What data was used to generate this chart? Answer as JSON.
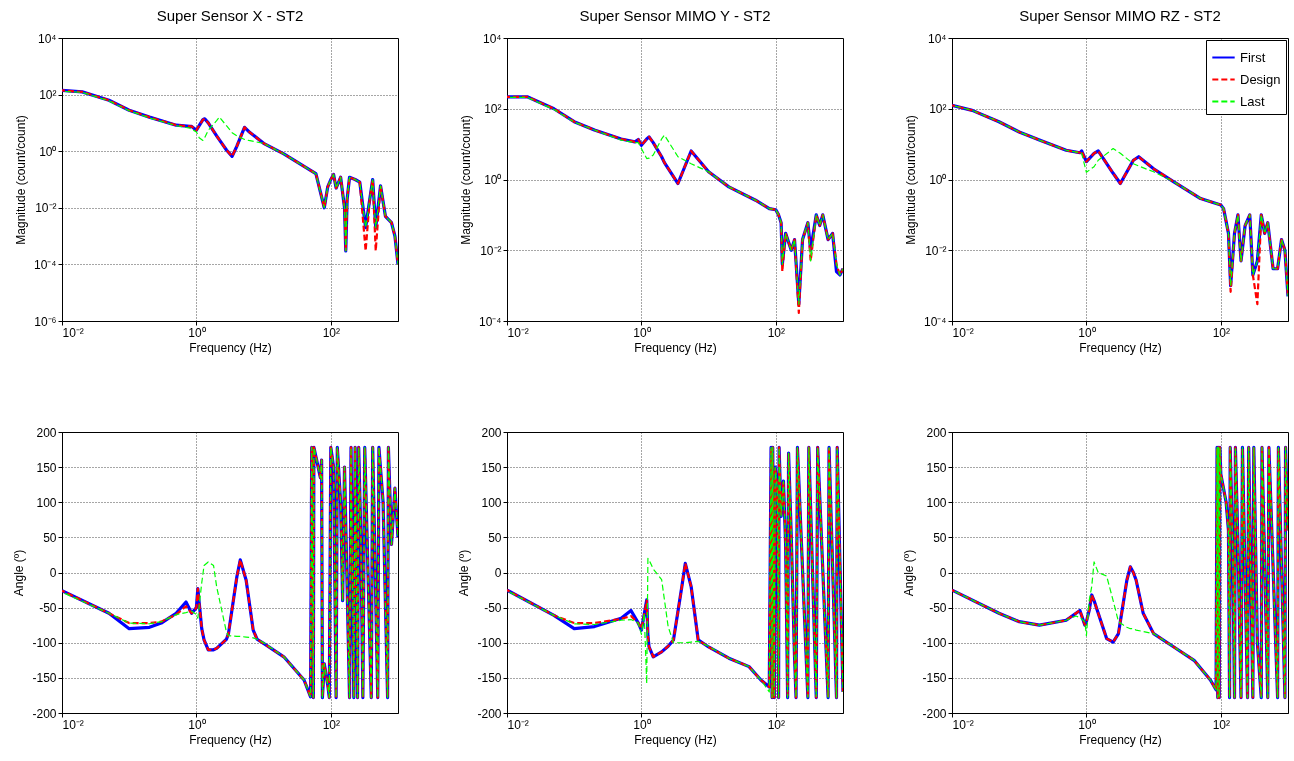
{
  "chart_data": [
    {
      "type": "line",
      "title": "Super Sensor X - ST2",
      "xlabel": "Frequency (Hz)",
      "ylabel": "Magnitude (count/count)",
      "log": "xy",
      "grid": true,
      "xlim": [
        0.01,
        1000
      ],
      "ylim": [
        1e-06,
        10000
      ],
      "xticks": [
        {
          "value": 0.01,
          "label": "10⁻²"
        },
        {
          "value": 1,
          "label": "10⁰"
        },
        {
          "value": 100,
          "label": "10²"
        }
      ],
      "yticks": [
        {
          "value": 1e-06,
          "label": "10⁻⁶"
        },
        {
          "value": 0.0001,
          "label": "10⁻⁴"
        },
        {
          "value": 0.01,
          "label": "10⁻²"
        },
        {
          "value": 1,
          "label": "10⁰"
        },
        {
          "value": 100,
          "label": "10²"
        },
        {
          "value": 10000,
          "label": "10⁴"
        }
      ],
      "x": [
        0.01,
        0.02,
        0.05,
        0.1,
        0.2,
        0.5,
        0.8,
        0.85,
        1,
        1.1,
        1.25,
        1.33,
        1.5,
        2,
        2.2,
        2.8,
        3.4,
        4,
        5.2,
        6,
        10,
        20,
        50,
        60,
        80,
        90,
        100,
        110,
        120,
        140,
        160,
        167,
        175,
        190,
        230,
        270,
        330,
        380,
        420,
        466,
        550,
        650,
        800,
        900,
        1000
      ],
      "series": [
        {
          "color": "#0000ff",
          "line_style": "solid",
          "values": [
            140,
            125,
            63,
            28,
            16,
            8.3,
            7.5,
            7.5,
            5.5,
            8,
            13,
            14,
            10,
            3.5,
            2.5,
            1.1,
            0.66,
            1.5,
            7,
            5,
            1.9,
            0.8,
            0.21,
            0.16,
            0.01,
            0.055,
            0.1,
            0.15,
            0.05,
            0.12,
            0.01,
            0.0003,
            0.02,
            0.12,
            0.1,
            0.08,
            0.002,
            0.02,
            0.1,
            0.002,
            0.06,
            0.005,
            0.003,
            0.001,
            0.0001
          ]
        },
        {
          "color": "#ff0000",
          "line_style": "dashed",
          "values": [
            140,
            125,
            63,
            28,
            16,
            8.3,
            7.5,
            7.5,
            5.5,
            8,
            13,
            14,
            10,
            3.5,
            2.5,
            1.1,
            0.66,
            1.5,
            7,
            5,
            1.9,
            0.8,
            0.21,
            0.16,
            0.01,
            0.055,
            0.1,
            0.15,
            0.05,
            0.12,
            0.01,
            0.0003,
            0.02,
            0.12,
            0.1,
            0.08,
            0.0003,
            0.02,
            0.1,
            0.0003,
            0.06,
            0.005,
            0.003,
            0.001,
            0.0001
          ]
        },
        {
          "color": "#00ff00",
          "line_style": "dashed",
          "values": [
            130,
            120,
            60,
            27,
            15,
            8,
            6.5,
            6,
            4.8,
            3,
            2.4,
            3,
            5.5,
            12,
            16,
            8,
            4.5,
            3.5,
            2.6,
            2.4,
            1.9,
            0.8,
            0.21,
            0.16,
            0.01,
            0.055,
            0.1,
            0.15,
            0.05,
            0.12,
            0.01,
            0.0003,
            0.02,
            0.12,
            0.1,
            0.08,
            0.002,
            0.02,
            0.1,
            0.002,
            0.06,
            0.005,
            0.003,
            0.001,
            0.0001
          ]
        }
      ]
    },
    {
      "type": "line",
      "title": "Super Sensor MIMO Y - ST2",
      "xlabel": "Frequency (Hz)",
      "ylabel": "Magnitude (count/count)",
      "log": "xy",
      "grid": true,
      "xlim": [
        0.01,
        1000
      ],
      "ylim": [
        0.0001,
        10000
      ],
      "xticks": [
        {
          "value": 0.01,
          "label": "10⁻²"
        },
        {
          "value": 1,
          "label": "10⁰"
        },
        {
          "value": 100,
          "label": "10²"
        }
      ],
      "yticks": [
        {
          "value": 0.0001,
          "label": "10⁻⁴"
        },
        {
          "value": 0.01,
          "label": "10⁻²"
        },
        {
          "value": 1,
          "label": "10⁰"
        },
        {
          "value": 100,
          "label": "10²"
        },
        {
          "value": 10000,
          "label": "10⁴"
        }
      ],
      "x": [
        0.01,
        0.02,
        0.05,
        0.1,
        0.2,
        0.5,
        0.8,
        0.9,
        1,
        1.2,
        1.3,
        1.5,
        2,
        2.2,
        3.5,
        5.5,
        10,
        20,
        50,
        80,
        100,
        110,
        120,
        125,
        140,
        170,
        190,
        220,
        250,
        300,
        330,
        400,
        450,
        500,
        600,
        700,
        800,
        900,
        1000
      ],
      "series": [
        {
          "color": "#0000ff",
          "line_style": "solid",
          "values": [
            218,
            218,
            100,
            43,
            25,
            14,
            11.6,
            13.5,
            9.3,
            14,
            16,
            11,
            4.4,
            3,
            0.77,
            6.4,
            1.65,
            0.62,
            0.26,
            0.15,
            0.14,
            0.1,
            0.06,
            0.004,
            0.03,
            0.01,
            0.02,
            0.0003,
            0.02,
            0.06,
            0.01,
            0.1,
            0.05,
            0.1,
            0.02,
            0.03,
            0.0025,
            0.002,
            0.003
          ]
        },
        {
          "color": "#ff0000",
          "line_style": "dashed",
          "values": [
            218,
            218,
            100,
            43,
            25,
            14,
            11.6,
            13.5,
            9.3,
            14,
            16,
            11,
            4.4,
            3,
            0.77,
            6.4,
            1.65,
            0.62,
            0.26,
            0.15,
            0.14,
            0.1,
            0.06,
            0.0025,
            0.03,
            0.01,
            0.02,
            0.00017,
            0.02,
            0.06,
            0.005,
            0.1,
            0.05,
            0.1,
            0.02,
            0.03,
            0.004,
            0.002,
            0.003
          ]
        },
        {
          "color": "#00ff00",
          "line_style": "dashed",
          "values": [
            210,
            210,
            95,
            42,
            25,
            13,
            11,
            11,
            7.5,
            3.9,
            4,
            4.9,
            14,
            18,
            4.4,
            2.8,
            1.65,
            0.62,
            0.26,
            0.15,
            0.14,
            0.1,
            0.06,
            0.004,
            0.03,
            0.01,
            0.02,
            0.0003,
            0.02,
            0.06,
            0.005,
            0.1,
            0.05,
            0.1,
            0.02,
            0.03,
            0.004,
            0.002,
            0.003
          ]
        }
      ]
    },
    {
      "type": "line",
      "title": "Super Sensor MIMO RZ - ST2",
      "xlabel": "Frequency (Hz)",
      "ylabel": "Magnitude (count/count)",
      "log": "xy",
      "grid": true,
      "legend": "top right",
      "xlim": [
        0.01,
        1000
      ],
      "ylim": [
        0.0001,
        10000
      ],
      "xticks": [
        {
          "value": 0.01,
          "label": "10⁻²"
        },
        {
          "value": 1,
          "label": "10⁰"
        },
        {
          "value": 100,
          "label": "10²"
        }
      ],
      "yticks": [
        {
          "value": 0.0001,
          "label": "10⁻⁴"
        },
        {
          "value": 0.01,
          "label": "10⁻²"
        },
        {
          "value": 1,
          "label": "10⁰"
        },
        {
          "value": 100,
          "label": "10²"
        },
        {
          "value": 10000,
          "label": "10⁴"
        }
      ],
      "x": [
        0.01,
        0.02,
        0.05,
        0.1,
        0.2,
        0.5,
        0.8,
        0.85,
        1,
        1.3,
        1.5,
        2.5,
        3.2,
        5,
        6,
        10,
        20,
        50,
        100,
        110,
        130,
        140,
        160,
        180,
        200,
        230,
        270,
        300,
        350,
        400,
        450,
        500,
        600,
        700,
        800,
        900,
        1000
      ],
      "series": [
        {
          "name": "First",
          "color": "#0000ff",
          "line_style": "solid",
          "values": [
            125,
            90,
            43,
            22,
            13,
            6.7,
            5.7,
            6.4,
            3.2,
            5.5,
            6.4,
            1.5,
            0.77,
            3.5,
            4.4,
            2,
            0.86,
            0.29,
            0.19,
            0.15,
            0.03,
            0.001,
            0.03,
            0.1,
            0.005,
            0.05,
            0.1,
            0.002,
            0.005,
            0.1,
            0.03,
            0.06,
            0.003,
            0.003,
            0.02,
            0.01,
            0.0005
          ]
        },
        {
          "name": "Design",
          "color": "#ff0000",
          "line_style": "dashed",
          "values": [
            125,
            90,
            43,
            22,
            13,
            6.7,
            5.7,
            6.4,
            3.2,
            5.5,
            6.4,
            1.5,
            0.77,
            3.5,
            4.4,
            2,
            0.86,
            0.29,
            0.19,
            0.15,
            0.03,
            0.00067,
            0.03,
            0.1,
            0.005,
            0.05,
            0.1,
            0.002,
            0.0003,
            0.1,
            0.03,
            0.06,
            0.003,
            0.003,
            0.02,
            0.01,
            0.0005
          ]
        },
        {
          "name": "Last",
          "color": "#00ff00",
          "line_style": "dashed",
          "values": [
            125,
            90,
            43,
            22,
            13,
            6.7,
            5.7,
            5.5,
            1.6,
            2.3,
            3.5,
            7.5,
            5.5,
            2.8,
            2.4,
            1.65,
            0.86,
            0.29,
            0.19,
            0.15,
            0.03,
            0.001,
            0.03,
            0.1,
            0.005,
            0.05,
            0.1,
            0.002,
            0.005,
            0.1,
            0.03,
            0.06,
            0.003,
            0.003,
            0.02,
            0.01,
            0.0005
          ]
        }
      ]
    },
    {
      "type": "line",
      "xlabel": "Frequency (Hz)",
      "ylabel": "Angle (º)",
      "log": "x",
      "grid": true,
      "xlim": [
        0.01,
        1000
      ],
      "ylim": [
        -200,
        200
      ],
      "xticks": [
        {
          "value": 0.01,
          "label": "10⁻²"
        },
        {
          "value": 1,
          "label": "10⁰"
        },
        {
          "value": 100,
          "label": "10²"
        }
      ],
      "yticks": [
        -200,
        -150,
        -100,
        -50,
        0,
        50,
        100,
        150,
        200
      ],
      "x": [
        0.01,
        0.05,
        0.1,
        0.2,
        0.3,
        0.5,
        0.7,
        0.85,
        1,
        1.05,
        1.2,
        1.3,
        1.5,
        1.8,
        2,
        2.8,
        3,
        4,
        4.5,
        5.5,
        7,
        8,
        10,
        20,
        40,
        50,
        52,
        55,
        56,
        60,
        70,
        73,
        75,
        80,
        90,
        95,
        100,
        110,
        120,
        125,
        140,
        150,
        160,
        190,
        200,
        220,
        230,
        250,
        260,
        280,
        300,
        320,
        400,
        420,
        500,
        520,
        600,
        700,
        720,
        800,
        900,
        1000
      ],
      "series": [
        {
          "color": "#0000ff",
          "line_style": "solid",
          "values": [
            -26,
            -58,
            -80,
            -78,
            -72,
            -58,
            -42,
            -58,
            -50,
            -23,
            -80,
            -96,
            -110,
            -110,
            -108,
            -95,
            -87,
            -6,
            18,
            -11,
            -82,
            -95,
            -101,
            -120,
            -153,
            -177,
            178,
            -178,
            178,
            165,
            135,
            160,
            -178,
            -130,
            -160,
            -178,
            178,
            150,
            -178,
            178,
            100,
            -40,
            150,
            -178,
            178,
            -178,
            178,
            -178,
            178,
            50,
            -178,
            178,
            -178,
            178,
            -178,
            178,
            100,
            -178,
            178,
            40,
            120,
            50
          ]
        },
        {
          "color": "#ff0000",
          "line_style": "dashed",
          "values": [
            -26,
            -58,
            -72,
            -72,
            -70,
            -60,
            -48,
            -58,
            -50,
            -23,
            -80,
            -96,
            -110,
            -110,
            -108,
            -95,
            -87,
            -6,
            18,
            -11,
            -82,
            -95,
            -101,
            -120,
            -153,
            -177,
            178,
            -178,
            178,
            165,
            135,
            160,
            -178,
            -130,
            -160,
            -178,
            178,
            150,
            -178,
            178,
            100,
            -40,
            150,
            -178,
            178,
            -178,
            178,
            -178,
            178,
            50,
            -178,
            178,
            -178,
            178,
            -178,
            178,
            100,
            -178,
            178,
            40,
            120,
            50
          ]
        },
        {
          "color": "#00ff00",
          "line_style": "dashed",
          "values": [
            -28,
            -58,
            -72,
            -73,
            -70,
            -60,
            -57,
            -55,
            -60,
            -65,
            -15,
            10,
            15,
            10,
            -20,
            -85,
            -90,
            -91,
            -91,
            -92,
            -93,
            -95,
            -100,
            -120,
            -153,
            -177,
            178,
            -178,
            178,
            165,
            135,
            160,
            -178,
            -130,
            -160,
            -178,
            178,
            150,
            -178,
            178,
            100,
            -40,
            150,
            -178,
            178,
            -178,
            178,
            -178,
            178,
            50,
            -178,
            178,
            -178,
            178,
            -178,
            178,
            100,
            -178,
            178,
            40,
            120,
            50
          ]
        }
      ]
    },
    {
      "type": "line",
      "xlabel": "Frequency (Hz)",
      "ylabel": "Angle (º)",
      "log": "x",
      "grid": true,
      "xlim": [
        0.01,
        1000
      ],
      "ylim": [
        -200,
        200
      ],
      "xticks": [
        {
          "value": 0.01,
          "label": "10⁻²"
        },
        {
          "value": 1,
          "label": "10⁰"
        },
        {
          "value": 100,
          "label": "10²"
        }
      ],
      "yticks": [
        -200,
        -150,
        -100,
        -50,
        0,
        50,
        100,
        150,
        200
      ],
      "x": [
        0.01,
        0.05,
        0.1,
        0.2,
        0.5,
        0.7,
        0.9,
        1,
        1.1,
        1.2,
        1.25,
        1.3,
        1.5,
        2,
        2.5,
        3,
        4,
        4.5,
        5.5,
        7,
        10,
        20,
        40,
        60,
        80,
        85,
        88,
        90,
        95,
        98,
        105,
        110,
        112,
        120,
        130,
        140,
        150,
        155,
        170,
        190,
        200,
        210,
        300,
        310,
        400,
        420,
        600,
        620,
        800,
        820,
        1000
      ],
      "series": [
        {
          "color": "#0000ff",
          "line_style": "solid",
          "values": [
            -25,
            -61,
            -80,
            -77,
            -65,
            -54,
            -72,
            -82,
            -60,
            -39,
            -90,
            -106,
            -120,
            -113,
            -105,
            -96,
            -20,
            13,
            -20,
            -96,
            -106,
            -122,
            -134,
            -153,
            -163,
            178,
            -178,
            178,
            -178,
            150,
            120,
            -178,
            178,
            80,
            130,
            40,
            -178,
            170,
            50,
            -120,
            -178,
            178,
            -178,
            178,
            -178,
            178,
            -178,
            178,
            -178,
            178,
            -170
          ]
        },
        {
          "color": "#ff0000",
          "line_style": "dashed",
          "values": [
            -25,
            -61,
            -72,
            -72,
            -66,
            -62,
            -72,
            -80,
            -60,
            -40,
            -90,
            -106,
            -120,
            -113,
            -105,
            -96,
            -20,
            13,
            -20,
            -96,
            -106,
            -122,
            -134,
            -153,
            -163,
            178,
            -178,
            178,
            -178,
            150,
            120,
            -178,
            178,
            80,
            130,
            40,
            -178,
            170,
            50,
            -120,
            -178,
            178,
            -178,
            178,
            -178,
            178,
            -178,
            178,
            -178,
            178,
            -170
          ]
        },
        {
          "color": "#00ff00",
          "line_style": "dashed",
          "values": [
            -26,
            -61,
            -73,
            -74,
            -68,
            -67,
            -72,
            -88,
            -58,
            -158,
            20,
            18,
            5,
            -10,
            -77,
            -100,
            -100,
            -100,
            -99,
            -98,
            -105,
            -122,
            -134,
            -153,
            -170,
            178,
            -178,
            178,
            -178,
            150,
            120,
            -178,
            178,
            80,
            130,
            40,
            -178,
            170,
            50,
            -120,
            -178,
            178,
            -178,
            178,
            -178,
            178,
            -178,
            178,
            -178,
            178,
            -170
          ]
        }
      ]
    },
    {
      "type": "line",
      "xlabel": "Frequency (Hz)",
      "ylabel": "Angle (º)",
      "log": "x",
      "grid": true,
      "xlim": [
        0.01,
        1000
      ],
      "ylim": [
        -200,
        200
      ],
      "xticks": [
        {
          "value": 0.01,
          "label": "10⁻²"
        },
        {
          "value": 1,
          "label": "10⁰"
        },
        {
          "value": 100,
          "label": "10²"
        }
      ],
      "yticks": [
        -200,
        -150,
        -100,
        -50,
        0,
        50,
        100,
        150,
        200
      ],
      "x": [
        0.01,
        0.05,
        0.1,
        0.2,
        0.5,
        0.7,
        0.8,
        0.95,
        1,
        1.1,
        1.2,
        1.3,
        1.5,
        2,
        2.5,
        3,
        4,
        4.5,
        5,
        5.5,
        7,
        10,
        20,
        40,
        70,
        85,
        88,
        90,
        92,
        95,
        97,
        100,
        120,
        130,
        135,
        138,
        150,
        160,
        165,
        180,
        200,
        210,
        250,
        260,
        300,
        310,
        350,
        400,
        410,
        500,
        520,
        700,
        720,
        900,
        920,
        1000
      ],
      "series": [
        {
          "color": "#0000ff",
          "line_style": "solid",
          "values": [
            -25,
            -58,
            -70,
            -75,
            -68,
            -58,
            -54,
            -75,
            -70,
            -54,
            -32,
            -40,
            -58,
            -94,
            -99,
            -87,
            -11,
            8,
            0,
            -11,
            -58,
            -87,
            -106,
            -125,
            -153,
            -167,
            178,
            -178,
            178,
            -178,
            178,
            140,
            100,
            60,
            -178,
            178,
            40,
            -178,
            178,
            40,
            -178,
            178,
            -178,
            178,
            -178,
            178,
            -100,
            -178,
            178,
            -178,
            178,
            -178,
            178,
            -178,
            178,
            60
          ]
        },
        {
          "color": "#ff0000",
          "line_style": "dashed",
          "values": [
            -25,
            -58,
            -70,
            -75,
            -68,
            -58,
            -54,
            -75,
            -70,
            -54,
            -32,
            -40,
            -58,
            -94,
            -99,
            -87,
            -11,
            8,
            0,
            -11,
            -58,
            -87,
            -106,
            -125,
            -153,
            -167,
            178,
            -178,
            178,
            -178,
            178,
            140,
            100,
            60,
            -178,
            178,
            40,
            -178,
            178,
            40,
            -178,
            178,
            -178,
            178,
            -178,
            178,
            -100,
            -178,
            178,
            -178,
            178,
            -178,
            178,
            -178,
            178,
            60
          ]
        },
        {
          "color": "#00ff00",
          "line_style": "dashed",
          "values": [
            -25,
            -58,
            -70,
            -75,
            -68,
            -62,
            -64,
            -70,
            -90,
            -40,
            -20,
            15,
            0,
            -5,
            -40,
            -70,
            -78,
            -80,
            -80,
            -82,
            -84,
            -87,
            -106,
            -125,
            -153,
            -167,
            178,
            -178,
            178,
            -178,
            178,
            140,
            100,
            60,
            -178,
            178,
            40,
            -178,
            178,
            40,
            -178,
            178,
            -178,
            178,
            -178,
            178,
            -100,
            -178,
            178,
            -178,
            178,
            -178,
            178,
            -178,
            178,
            60
          ]
        }
      ]
    }
  ]
}
